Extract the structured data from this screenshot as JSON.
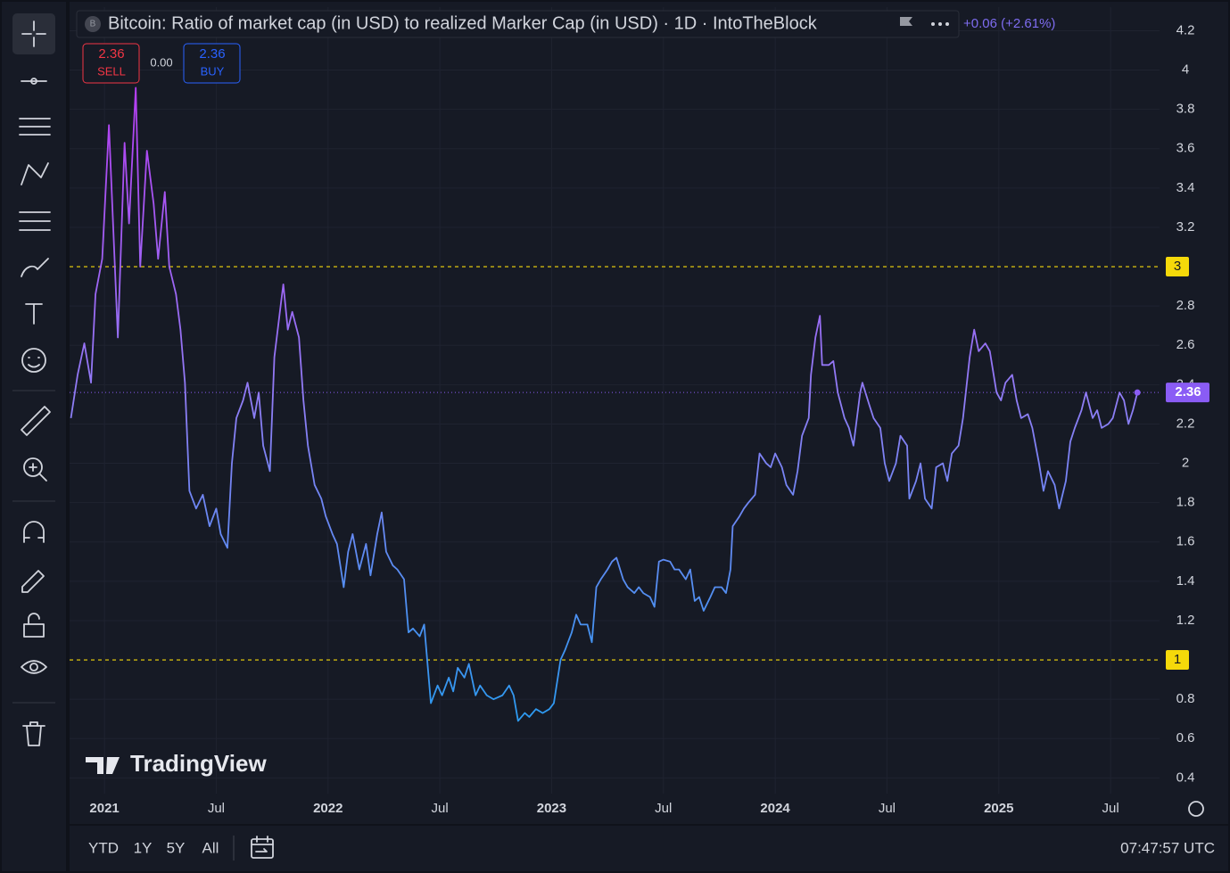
{
  "header": {
    "symbol_icon": "B",
    "title": "Bitcoin: Ratio of market cap (in USD) to realized Marker Cap (in USD) · 1D · IntoTheBlock",
    "change": "+0.06 (+2.61%)"
  },
  "trade": {
    "sell_price": "2.36",
    "sell_label": "SELL",
    "spread": "0.00",
    "buy_price": "2.36",
    "buy_label": "BUY"
  },
  "chart_data": {
    "type": "line",
    "x": [
      2020.85,
      2020.88,
      2020.91,
      2020.94,
      2020.96,
      2020.99,
      2021.02,
      2021.04,
      2021.06,
      2021.09,
      2021.11,
      2021.14,
      2021.16,
      2021.19,
      2021.22,
      2021.24,
      2021.27,
      2021.29,
      2021.32,
      2021.34,
      2021.36,
      2021.38,
      2021.41,
      2021.44,
      2021.47,
      2021.5,
      2021.52,
      2021.55,
      2021.57,
      2021.59,
      2021.62,
      2021.64,
      2021.67,
      2021.69,
      2021.71,
      2021.74,
      2021.76,
      2021.79,
      2021.8,
      2021.82,
      2021.84,
      2021.87,
      2021.89,
      2021.91,
      2021.94,
      2021.97,
      2021.99,
      2022.02,
      2022.04,
      2022.07,
      2022.09,
      2022.11,
      2022.14,
      2022.17,
      2022.19,
      2022.22,
      2022.24,
      2022.26,
      2022.29,
      2022.31,
      2022.34,
      2022.36,
      2022.38,
      2022.41,
      2022.43,
      2022.46,
      2022.49,
      2022.51,
      2022.54,
      2022.56,
      2022.58,
      2022.61,
      2022.63,
      2022.66,
      2022.68,
      2022.71,
      2022.74,
      2022.78,
      2022.81,
      2022.83,
      2022.85,
      2022.88,
      2022.9,
      2022.93,
      2022.96,
      2022.99,
      2023.01,
      2023.04,
      2023.06,
      2023.09,
      2023.11,
      2023.13,
      2023.16,
      2023.18,
      2023.2,
      2023.22,
      2023.25,
      2023.27,
      2023.29,
      2023.32,
      2023.34,
      2023.37,
      2023.39,
      2023.41,
      2023.44,
      2023.46,
      2023.48,
      2023.5,
      2023.53,
      2023.55,
      2023.57,
      2023.6,
      2023.62,
      2023.64,
      2023.66,
      2023.68,
      2023.71,
      2023.73,
      2023.76,
      2023.78,
      2023.8,
      2023.81,
      2023.84,
      2023.86,
      2023.88,
      2023.91,
      2023.93,
      2023.96,
      2023.98,
      2024.0,
      2024.03,
      2024.05,
      2024.08,
      2024.1,
      2024.12,
      2024.15,
      2024.16,
      2024.18,
      2024.2,
      2024.21,
      2024.24,
      2024.26,
      2024.28,
      2024.31,
      2024.33,
      2024.35,
      2024.38,
      2024.39,
      2024.42,
      2024.44,
      2024.47,
      2024.49,
      2024.51,
      2024.54,
      2024.56,
      2024.59,
      2024.6,
      2024.63,
      2024.65,
      2024.67,
      2024.7,
      2024.72,
      2024.75,
      2024.77,
      2024.79,
      2024.82,
      2024.84,
      2024.87,
      2024.89,
      2024.91,
      2024.94,
      2024.96,
      2024.99,
      2025.01,
      2025.03,
      2025.06,
      2025.08,
      2025.1,
      2025.13,
      2025.15,
      2025.18,
      2025.2,
      2025.22,
      2025.25,
      2025.27,
      2025.3,
      2025.32,
      2025.34,
      2025.37,
      2025.39,
      2025.42,
      2025.44,
      2025.46,
      2025.49,
      2025.51,
      2025.54,
      2025.56,
      2025.58,
      2025.6,
      2025.62
    ],
    "series": [
      {
        "gradient": [
          "#b63cf2",
          "#8f7df5",
          "#2b9af0"
        ],
        "values": [
          2.23,
          2.45,
          2.61,
          2.41,
          2.86,
          3.04,
          3.72,
          3.18,
          2.64,
          3.63,
          3.22,
          3.91,
          3.0,
          3.59,
          3.32,
          3.04,
          3.38,
          3.0,
          2.86,
          2.68,
          2.41,
          1.86,
          1.77,
          1.84,
          1.68,
          1.77,
          1.64,
          1.57,
          2.0,
          2.23,
          2.32,
          2.41,
          2.23,
          2.36,
          2.09,
          1.96,
          2.54,
          2.82,
          2.91,
          2.68,
          2.77,
          2.64,
          2.32,
          2.09,
          1.89,
          1.82,
          1.73,
          1.64,
          1.59,
          1.37,
          1.55,
          1.64,
          1.46,
          1.59,
          1.43,
          1.64,
          1.75,
          1.55,
          1.48,
          1.46,
          1.41,
          1.14,
          1.16,
          1.12,
          1.18,
          0.78,
          0.87,
          0.82,
          0.91,
          0.84,
          0.96,
          0.91,
          0.98,
          0.82,
          0.87,
          0.82,
          0.8,
          0.82,
          0.87,
          0.82,
          0.69,
          0.73,
          0.71,
          0.75,
          0.73,
          0.75,
          0.78,
          1.0,
          1.05,
          1.14,
          1.23,
          1.18,
          1.18,
          1.09,
          1.37,
          1.41,
          1.46,
          1.5,
          1.52,
          1.41,
          1.37,
          1.34,
          1.37,
          1.34,
          1.32,
          1.27,
          1.5,
          1.51,
          1.5,
          1.46,
          1.46,
          1.41,
          1.46,
          1.3,
          1.32,
          1.25,
          1.32,
          1.37,
          1.37,
          1.34,
          1.46,
          1.68,
          1.73,
          1.77,
          1.8,
          1.84,
          2.05,
          2.0,
          1.98,
          2.05,
          1.98,
          1.89,
          1.84,
          1.96,
          2.14,
          2.23,
          2.45,
          2.64,
          2.75,
          2.5,
          2.5,
          2.52,
          2.36,
          2.23,
          2.18,
          2.09,
          2.36,
          2.41,
          2.3,
          2.23,
          2.18,
          2.0,
          1.91,
          2.0,
          2.14,
          2.09,
          1.82,
          1.91,
          2.0,
          1.82,
          1.77,
          1.98,
          2.0,
          1.91,
          2.05,
          2.09,
          2.23,
          2.54,
          2.68,
          2.57,
          2.61,
          2.57,
          2.36,
          2.32,
          2.41,
          2.45,
          2.32,
          2.23,
          2.25,
          2.18,
          2.0,
          1.86,
          1.96,
          1.89,
          1.77,
          1.91,
          2.11,
          2.18,
          2.27,
          2.36,
          2.23,
          2.27,
          2.18,
          2.2,
          2.23,
          2.36,
          2.32,
          2.2,
          2.27,
          2.36
        ]
      }
    ],
    "last_marker_color": "#8a5cf5",
    "xlim": [
      2020.844,
      2025.719
    ],
    "ylim": [
      0.32,
      4.32
    ],
    "yticks": [
      4.2,
      4,
      3.8,
      3.6,
      3.4,
      3.2,
      2.8,
      2.6,
      2.4,
      2.2,
      2,
      1.8,
      1.6,
      1.4,
      1.2,
      0.8,
      0.6,
      0.4
    ],
    "xticks": [
      2021,
      {
        "value": 2021.5,
        "label": "Jul"
      },
      2022,
      {
        "value": 2022.5,
        "label": "Jul"
      },
      2023,
      {
        "value": 2023.5,
        "label": "Jul"
      },
      2024,
      {
        "value": 2024.5,
        "label": "Jul"
      },
      2025,
      {
        "value": 2025.5,
        "label": "Jul"
      }
    ],
    "hlines": [
      3,
      1
    ],
    "hline_color": "#f5d90a",
    "grid": true
  },
  "watermark": "TradingView",
  "range_buttons": [
    "YTD",
    "1Y",
    "5Y",
    "All"
  ],
  "clock": "07:47:57 UTC"
}
